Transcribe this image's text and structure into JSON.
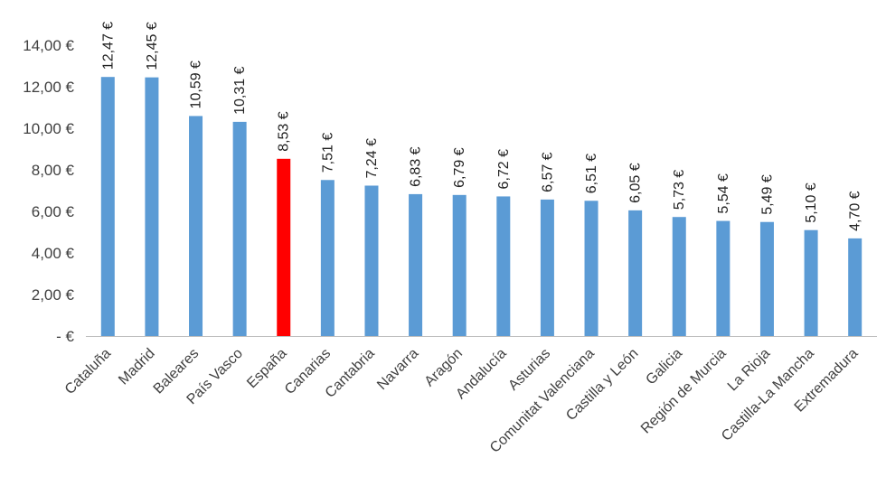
{
  "chart_data": {
    "type": "bar",
    "categories": [
      "Cataluña",
      "Madrid",
      "Baleares",
      "País Vasco",
      "España",
      "Canarias",
      "Cantabria",
      "Navarra",
      "Aragón",
      "Andalucía",
      "Asturias",
      "Comunitat Valenciana",
      "Castilla y León",
      "Galicia",
      "Región de Murcia",
      "La Rioja",
      "Castilla-La Mancha",
      "Extremadura"
    ],
    "values": [
      12.47,
      12.45,
      10.59,
      10.31,
      8.53,
      7.51,
      7.24,
      6.83,
      6.79,
      6.72,
      6.57,
      6.51,
      6.05,
      5.73,
      5.54,
      5.49,
      5.1,
      4.7
    ],
    "data_labels": [
      "12,47 €",
      "12,45 €",
      "10,59 €",
      "10,31 €",
      "8,53 €",
      "7,51 €",
      "7,24 €",
      "6,83 €",
      "6,79 €",
      "6,72 €",
      "6,57 €",
      "6,51 €",
      "6,05 €",
      "5,73 €",
      "5,54 €",
      "5,49 €",
      "5,10 €",
      "4,70 €"
    ],
    "title": "",
    "xlabel": "",
    "ylabel": "",
    "ylim": [
      0,
      14
    ],
    "y_ticks": [
      0,
      2,
      4,
      6,
      8,
      10,
      12,
      14
    ],
    "y_tick_labels": [
      "-  €",
      "2,00 €",
      "4,00 €",
      "6,00 €",
      "8,00 €",
      "10,00 €",
      "12,00 €",
      "14,00 €"
    ],
    "grid": false,
    "legend": "none",
    "colors": {
      "bar": "#5b9bd5",
      "highlight": "#ff0000",
      "axis": "#bfbfbf"
    },
    "highlight_category": "España"
  }
}
